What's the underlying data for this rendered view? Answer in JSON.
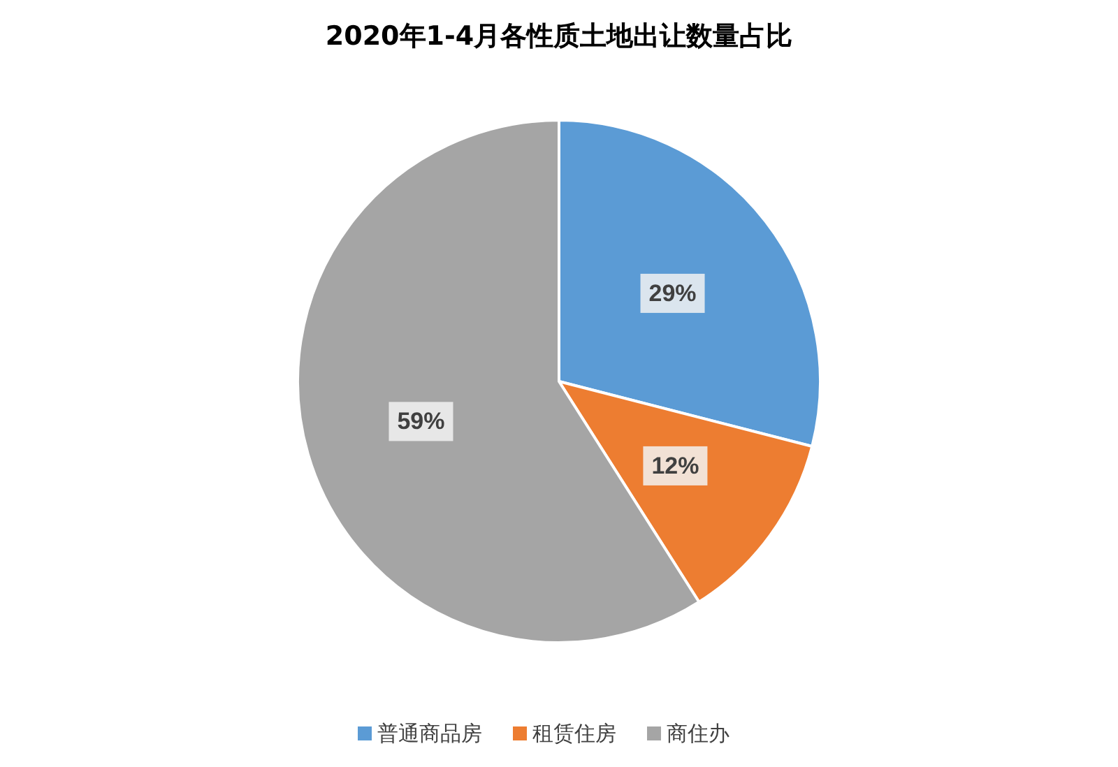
{
  "chart_data": {
    "type": "pie",
    "title": "2020年1-4月各性质土地出让数量占比",
    "categories": [
      "普通商品房",
      "租赁住房",
      "商住办"
    ],
    "values": [
      29,
      12,
      59
    ],
    "colors": [
      "#5b9bd5",
      "#ed7d31",
      "#a5a5a5"
    ],
    "value_labels": [
      "29%",
      "12%",
      "59%"
    ],
    "legend": "bottom"
  }
}
